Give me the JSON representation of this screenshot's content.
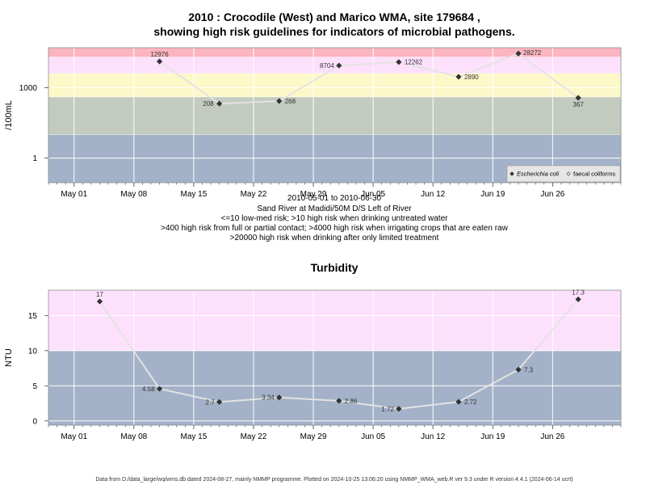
{
  "figure": {
    "title_line1": "2010 : Crocodile (West) and Marico WMA, site 179684 ,",
    "title_line2": "showing high risk guidelines for indicators of microbial pathogens.",
    "caption_lines": [
      "2010-05-01 to 2010-06-30",
      "Sand River at Madidi/50M D/S Left of River",
      "<=10 low-med risk; >10 high risk when drinking untreated water",
      ">400 high risk from full or partial contact; >4000 high risk when irrigating crops that are eaten raw",
      ">20000 high risk when drinking after only limited treatment"
    ],
    "footer": "Data from D:/data_large/wq/wms.db dated 2024-08-27, mainly NMMP programme. Plotted on 2024-10-25 13:06:20 using NMMP_WMA_web.R ver 9.3 under R version 4.4.1 (2024-06-14 ucrt)"
  },
  "chart_data": [
    {
      "type": "scatter",
      "title": "",
      "xlabel": "",
      "ylabel": "/100mL",
      "y_scale": "log",
      "y_ticks": [
        1,
        1000
      ],
      "x_ticks": [
        "May 01",
        "May 08",
        "May 15",
        "May 22",
        "May 29",
        "Jun 05",
        "Jun 12",
        "Jun 19",
        "Jun 26"
      ],
      "x_tick_dates": [
        "2010-05-01",
        "2010-05-08",
        "2010-05-15",
        "2010-05-22",
        "2010-05-29",
        "2010-06-05",
        "2010-06-12",
        "2010-06-19",
        "2010-06-26"
      ],
      "xlim": [
        "2010-04-28",
        "2010-07-04"
      ],
      "ylim": [
        0.09,
        50000
      ],
      "grid": true,
      "risk_bands": [
        {
          "from": 0.09,
          "to": 10,
          "color": "#a3b2c8"
        },
        {
          "from": 10,
          "to": 400,
          "color": "#c3cbc0"
        },
        {
          "from": 400,
          "to": 4000,
          "color": "#fdf8c8"
        },
        {
          "from": 4000,
          "to": 20000,
          "color": "#fde0fb"
        },
        {
          "from": 20000,
          "to": 50000,
          "color": "#fbb4c0"
        }
      ],
      "series": [
        {
          "name": "Escherichia coli",
          "marker": "filled-diamond",
          "color": "#333333",
          "line_color": "#e3e3e3",
          "points": [
            {
              "x": "2010-05-11",
              "y": 12976,
              "label": "12976"
            },
            {
              "x": "2010-05-18",
              "y": 208,
              "label": "208"
            },
            {
              "x": "2010-05-25",
              "y": 268,
              "label": "268"
            },
            {
              "x": "2010-06-01",
              "y": 8704,
              "label": "8704"
            },
            {
              "x": "2010-06-08",
              "y": 12262,
              "label": "12262"
            },
            {
              "x": "2010-06-15",
              "y": 2890,
              "label": "2890"
            },
            {
              "x": "2010-06-22",
              "y": 28272,
              "label": "28272"
            },
            {
              "x": "2010-06-29",
              "y": 367,
              "label": "367"
            }
          ]
        },
        {
          "name": "faecal coliforms",
          "marker": "open-diamond",
          "color": "#555555",
          "points": []
        }
      ],
      "legend": {
        "position": "bottom-right",
        "entries": [
          "Escherichia coli",
          "faecal coliforms"
        ]
      }
    },
    {
      "type": "scatter",
      "title": "Turbidity",
      "xlabel": "",
      "ylabel": "NTU",
      "y_scale": "linear",
      "y_ticks": [
        0,
        5,
        10,
        15
      ],
      "x_ticks": [
        "May 01",
        "May 08",
        "May 15",
        "May 22",
        "May 29",
        "Jun 05",
        "Jun 12",
        "Jun 19",
        "Jun 26"
      ],
      "x_tick_dates": [
        "2010-05-01",
        "2010-05-08",
        "2010-05-15",
        "2010-05-22",
        "2010-05-29",
        "2010-06-05",
        "2010-06-12",
        "2010-06-19",
        "2010-06-26"
      ],
      "xlim": [
        "2010-04-28",
        "2010-07-04"
      ],
      "ylim": [
        -0.6,
        18.6
      ],
      "grid": true,
      "risk_bands": [
        {
          "from": -0.6,
          "to": 10,
          "color": "#a3b2c8"
        },
        {
          "from": 10,
          "to": 18.6,
          "color": "#fde0fb"
        }
      ],
      "series": [
        {
          "name": "Turbidity",
          "marker": "filled-diamond",
          "color": "#333333",
          "line_color": "#e3e3e3",
          "points": [
            {
              "x": "2010-05-04",
              "y": 17,
              "label": "17"
            },
            {
              "x": "2010-05-11",
              "y": 4.58,
              "label": "4.58"
            },
            {
              "x": "2010-05-18",
              "y": 2.7,
              "label": "2.7"
            },
            {
              "x": "2010-05-25",
              "y": 3.34,
              "label": "3.34"
            },
            {
              "x": "2010-06-01",
              "y": 2.86,
              "label": "2.86"
            },
            {
              "x": "2010-06-08",
              "y": 1.72,
              "label": "1.72"
            },
            {
              "x": "2010-06-15",
              "y": 2.72,
              "label": "2.72"
            },
            {
              "x": "2010-06-22",
              "y": 7.3,
              "label": "7.3"
            },
            {
              "x": "2010-06-29",
              "y": 17.3,
              "label": "17.3"
            }
          ]
        }
      ]
    }
  ]
}
